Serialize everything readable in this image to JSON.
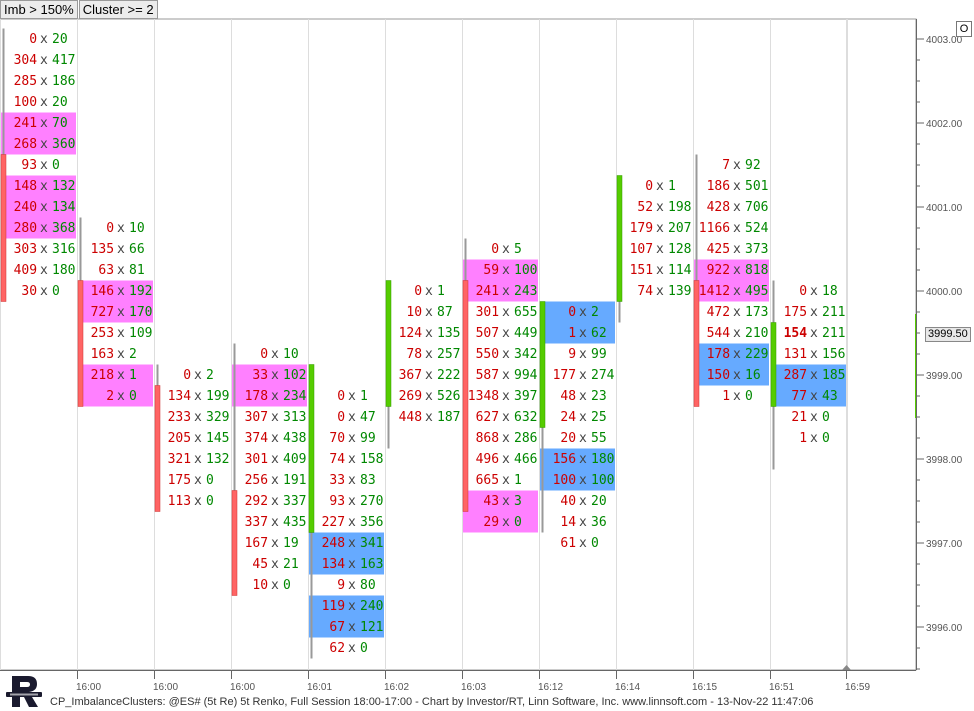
{
  "toolbar": {
    "imb_label": "Imb > 150%",
    "cluster_label": "Cluster >= 2"
  },
  "options_button": "O",
  "footer": {
    "text": "CP_ImbalanceClusters: @ES# (5t Re) 5t Renko, Full Session 18:00-17:00 - Chart by Investor/RT, Linn Software, Inc. www.linnsoft.com - 13-Nov-22 11:47:06"
  },
  "current_price_label": "3999.50",
  "colors": {
    "up": "#55cc00",
    "down": "#ff6464",
    "bid_cluster": "#ff80ff",
    "ask_cluster": "#66aaff",
    "bid_text": "#cc0000",
    "ask_text": "#008800",
    "grid": "#dddddd"
  },
  "chart_data": {
    "type": "footprint",
    "price_axis": {
      "ticks": [
        "4003.00",
        "4002.00",
        "4001.00",
        "4000.00",
        "3999.00",
        "3998.00",
        "3997.00",
        "3996.00"
      ],
      "range": [
        3995.75,
        4003.0
      ],
      "tick_size": 0.25
    },
    "time_labels": [
      "16:00",
      "16:00",
      "16:00",
      "16:01",
      "16:02",
      "16:03",
      "16:12",
      "16:14",
      "16:15",
      "16:51",
      "16:59"
    ],
    "bars": [
      {
        "dir": "down",
        "high": 4003.0,
        "low": 4000.0,
        "open": 4001.5,
        "close": 4000.0,
        "rows": [
          {
            "p": 4003.0,
            "bid": 0,
            "ask": 20
          },
          {
            "p": 4002.75,
            "bid": 304,
            "ask": 417
          },
          {
            "p": 4002.5,
            "bid": 285,
            "ask": 186
          },
          {
            "p": 4002.25,
            "bid": 100,
            "ask": 20
          },
          {
            "p": 4002.0,
            "bid": 241,
            "ask": 70,
            "hl": "bid"
          },
          {
            "p": 4001.75,
            "bid": 268,
            "ask": 360,
            "hl": "bid"
          },
          {
            "p": 4001.5,
            "bid": 93,
            "ask": 0
          },
          {
            "p": 4001.25,
            "bid": 148,
            "ask": 132,
            "hl": "bid"
          },
          {
            "p": 4001.0,
            "bid": 240,
            "ask": 134,
            "hl": "bid"
          },
          {
            "p": 4000.75,
            "bid": 280,
            "ask": 368,
            "hl": "bid"
          },
          {
            "p": 4000.5,
            "bid": 303,
            "ask": 316
          },
          {
            "p": 4000.25,
            "bid": 409,
            "ask": 180
          },
          {
            "p": 4000.0,
            "bid": 30,
            "ask": 0
          }
        ]
      },
      {
        "dir": "down",
        "high": 4000.75,
        "low": 3998.75,
        "open": 4000.0,
        "close": 3998.75,
        "rows": [
          {
            "p": 4000.75,
            "bid": 0,
            "ask": 10
          },
          {
            "p": 4000.5,
            "bid": 135,
            "ask": 66
          },
          {
            "p": 4000.25,
            "bid": 63,
            "ask": 81
          },
          {
            "p": 4000.0,
            "bid": 146,
            "ask": 192,
            "hl": "bid"
          },
          {
            "p": 3999.75,
            "bid": 727,
            "ask": 170,
            "hl": "bid"
          },
          {
            "p": 3999.5,
            "bid": 253,
            "ask": 109
          },
          {
            "p": 3999.25,
            "bid": 163,
            "ask": 2
          },
          {
            "p": 3999.0,
            "bid": 218,
            "ask": 1,
            "hl": "bid"
          },
          {
            "p": 3998.75,
            "bid": 2,
            "ask": 0,
            "hl": "bid"
          }
        ]
      },
      {
        "dir": "down",
        "high": 3999.0,
        "low": 3997.5,
        "open": 3998.75,
        "close": 3997.5,
        "rows": [
          {
            "p": 3999.0,
            "bid": 0,
            "ask": 2
          },
          {
            "p": 3998.75,
            "bid": 134,
            "ask": 199
          },
          {
            "p": 3998.5,
            "bid": 233,
            "ask": 329
          },
          {
            "p": 3998.25,
            "bid": 205,
            "ask": 145
          },
          {
            "p": 3998.0,
            "bid": 321,
            "ask": 132
          },
          {
            "p": 3997.75,
            "bid": 175,
            "ask": 0
          },
          {
            "p": 3997.5,
            "bid": 113,
            "ask": 0
          }
        ]
      },
      {
        "dir": "down",
        "high": 3999.25,
        "low": 3996.5,
        "open": 3997.5,
        "close": 3996.5,
        "rows": [
          {
            "p": 3999.25,
            "bid": 0,
            "ask": 10
          },
          {
            "p": 3999.0,
            "bid": 33,
            "ask": 102,
            "hl": "bid"
          },
          {
            "p": 3998.75,
            "bid": 178,
            "ask": 234,
            "hl": "bid"
          },
          {
            "p": 3998.5,
            "bid": 307,
            "ask": 313
          },
          {
            "p": 3998.25,
            "bid": 374,
            "ask": 438
          },
          {
            "p": 3998.0,
            "bid": 301,
            "ask": 409
          },
          {
            "p": 3997.75,
            "bid": 256,
            "ask": 191
          },
          {
            "p": 3997.5,
            "bid": 292,
            "ask": 337
          },
          {
            "p": 3997.25,
            "bid": 337,
            "ask": 435
          },
          {
            "p": 3997.0,
            "bid": 167,
            "ask": 19
          },
          {
            "p": 3996.75,
            "bid": 45,
            "ask": 21
          },
          {
            "p": 3996.5,
            "bid": 10,
            "ask": 0
          }
        ]
      },
      {
        "dir": "up",
        "high": 3999.0,
        "low": 3995.75,
        "open": 3997.25,
        "close": 3999.0,
        "rows": [
          {
            "p": 3998.75,
            "bid": 0,
            "ask": 1
          },
          {
            "p": 3998.5,
            "bid": 0,
            "ask": 47
          },
          {
            "p": 3998.25,
            "bid": 70,
            "ask": 99
          },
          {
            "p": 3998.0,
            "bid": 74,
            "ask": 158
          },
          {
            "p": 3997.75,
            "bid": 33,
            "ask": 83
          },
          {
            "p": 3997.5,
            "bid": 93,
            "ask": 270
          },
          {
            "p": 3997.25,
            "bid": 227,
            "ask": 356
          },
          {
            "p": 3997.0,
            "bid": 248,
            "ask": 341,
            "hl": "ask"
          },
          {
            "p": 3996.75,
            "bid": 134,
            "ask": 163,
            "hl": "ask"
          },
          {
            "p": 3996.5,
            "bid": 9,
            "ask": 80
          },
          {
            "p": 3996.25,
            "bid": 119,
            "ask": 240,
            "hl": "ask"
          },
          {
            "p": 3996.0,
            "bid": 67,
            "ask": 121,
            "hl": "ask"
          },
          {
            "p": 3995.75,
            "bid": 62,
            "ask": 0
          }
        ]
      },
      {
        "dir": "up",
        "high": 4000.0,
        "low": 3998.25,
        "open": 3998.75,
        "close": 4000.0,
        "rows": [
          {
            "p": 4000.0,
            "bid": 0,
            "ask": 1
          },
          {
            "p": 3999.75,
            "bid": 10,
            "ask": 87
          },
          {
            "p": 3999.5,
            "bid": 124,
            "ask": 135
          },
          {
            "p": 3999.25,
            "bid": 78,
            "ask": 257
          },
          {
            "p": 3999.0,
            "bid": 367,
            "ask": 222
          },
          {
            "p": 3998.75,
            "bid": 269,
            "ask": 526
          },
          {
            "p": 3998.5,
            "bid": 448,
            "ask": 187
          }
        ]
      },
      {
        "dir": "down",
        "high": 4000.5,
        "low": 3997.5,
        "open": 4000.0,
        "close": 3997.5,
        "rows": [
          {
            "p": 4000.5,
            "bid": 0,
            "ask": 5
          },
          {
            "p": 4000.25,
            "bid": 59,
            "ask": 100,
            "hl": "bid"
          },
          {
            "p": 4000.0,
            "bid": 241,
            "ask": 243,
            "hl": "bid"
          },
          {
            "p": 3999.75,
            "bid": 301,
            "ask": 655
          },
          {
            "p": 3999.5,
            "bid": 507,
            "ask": 449
          },
          {
            "p": 3999.25,
            "bid": 550,
            "ask": 342
          },
          {
            "p": 3999.0,
            "bid": 587,
            "ask": 994
          },
          {
            "p": 3998.75,
            "bid": 1348,
            "ask": 397
          },
          {
            "p": 3998.5,
            "bid": 627,
            "ask": 632
          },
          {
            "p": 3998.25,
            "bid": 868,
            "ask": 286
          },
          {
            "p": 3998.0,
            "bid": 496,
            "ask": 466
          },
          {
            "p": 3997.75,
            "bid": 665,
            "ask": 1
          },
          {
            "p": 3997.5,
            "bid": 43,
            "ask": 3,
            "hl": "bid"
          },
          {
            "p": 3997.25,
            "bid": 29,
            "ask": 0,
            "hl": "bid"
          }
        ]
      },
      {
        "dir": "up",
        "high": 3999.75,
        "low": 3997.25,
        "open": 3998.5,
        "close": 3999.75,
        "rows": [
          {
            "p": 3999.75,
            "bid": 0,
            "ask": 2,
            "hl": "ask"
          },
          {
            "p": 3999.5,
            "bid": 1,
            "ask": 62,
            "hl": "ask"
          },
          {
            "p": 3999.25,
            "bid": 9,
            "ask": 99
          },
          {
            "p": 3999.0,
            "bid": 177,
            "ask": 274
          },
          {
            "p": 3998.75,
            "bid": 48,
            "ask": 23
          },
          {
            "p": 3998.5,
            "bid": 24,
            "ask": 25
          },
          {
            "p": 3998.25,
            "bid": 20,
            "ask": 55
          },
          {
            "p": 3998.0,
            "bid": 156,
            "ask": 180,
            "hl": "ask"
          },
          {
            "p": 3997.75,
            "bid": 100,
            "ask": 100,
            "hl": "ask"
          },
          {
            "p": 3997.5,
            "bid": 40,
            "ask": 20
          },
          {
            "p": 3997.25,
            "bid": 14,
            "ask": 36
          },
          {
            "p": 3997.0,
            "bid": 61,
            "ask": 0
          }
        ]
      },
      {
        "dir": "up",
        "high": 4001.25,
        "low": 3999.75,
        "open": 4000.0,
        "close": 4001.25,
        "rows": [
          {
            "p": 4001.25,
            "bid": 0,
            "ask": 1
          },
          {
            "p": 4001.0,
            "bid": 52,
            "ask": 198
          },
          {
            "p": 4000.75,
            "bid": 179,
            "ask": 207
          },
          {
            "p": 4000.5,
            "bid": 107,
            "ask": 128
          },
          {
            "p": 4000.25,
            "bid": 151,
            "ask": 114
          },
          {
            "p": 4000.0,
            "bid": 74,
            "ask": 139
          }
        ]
      },
      {
        "dir": "down",
        "high": 4001.5,
        "low": 3998.75,
        "open": 4000.0,
        "close": 3998.75,
        "rows": [
          {
            "p": 4001.5,
            "bid": 7,
            "ask": 92
          },
          {
            "p": 4001.25,
            "bid": 186,
            "ask": 501
          },
          {
            "p": 4001.0,
            "bid": 428,
            "ask": 706
          },
          {
            "p": 4000.75,
            "bid": 1166,
            "ask": 524
          },
          {
            "p": 4000.5,
            "bid": 425,
            "ask": 373
          },
          {
            "p": 4000.25,
            "bid": 922,
            "ask": 818,
            "hl": "bid"
          },
          {
            "p": 4000.0,
            "bid": 1412,
            "ask": 495,
            "hl": "bid"
          },
          {
            "p": 3999.75,
            "bid": 472,
            "ask": 173
          },
          {
            "p": 3999.5,
            "bid": 544,
            "ask": 210
          },
          {
            "p": 3999.25,
            "bid": 178,
            "ask": 229,
            "hl": "ask"
          },
          {
            "p": 3999.0,
            "bid": 150,
            "ask": 16,
            "hl": "ask"
          },
          {
            "p": 3998.75,
            "bid": 1,
            "ask": 0
          }
        ]
      },
      {
        "dir": "up",
        "high": 4000.0,
        "low": 3998.0,
        "open": 3998.75,
        "close": 3999.5,
        "rows": [
          {
            "p": 4000.0,
            "bid": 0,
            "ask": 18
          },
          {
            "p": 3999.75,
            "bid": 175,
            "ask": 211
          },
          {
            "p": 3999.5,
            "bid": 154,
            "ask": 211,
            "bold": true
          },
          {
            "p": 3999.25,
            "bid": 131,
            "ask": 156
          },
          {
            "p": 3999.0,
            "bid": 287,
            "ask": 185,
            "hl": "ask"
          },
          {
            "p": 3998.75,
            "bid": 77,
            "ask": 43,
            "hl": "ask"
          },
          {
            "p": 3998.5,
            "bid": 21,
            "ask": 0
          },
          {
            "p": 3998.25,
            "bid": 1,
            "ask": 0
          }
        ]
      }
    ]
  }
}
